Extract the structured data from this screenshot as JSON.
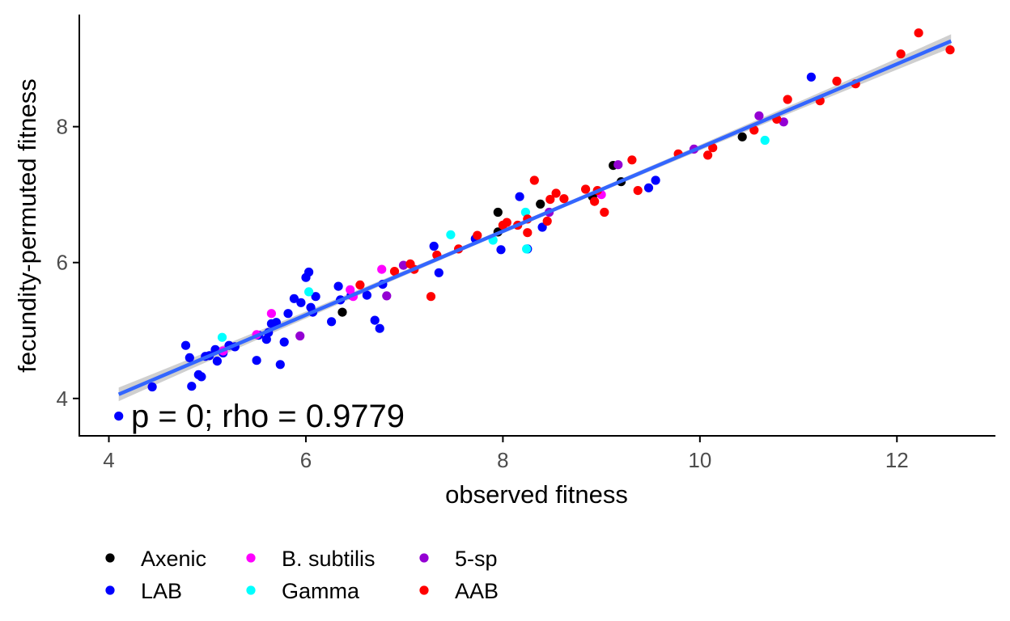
{
  "chart_data": {
    "type": "scatter",
    "xlabel": "observed fitness",
    "ylabel": "fecundity-permuted fitness",
    "xlim": [
      3.7,
      13.0
    ],
    "ylim": [
      3.45,
      9.65
    ],
    "xticks": [
      4,
      6,
      8,
      10,
      12
    ],
    "yticks": [
      4,
      6,
      8
    ],
    "annotation": "p = 0; rho = 0.9779",
    "fit_line": {
      "x": [
        4.1,
        12.55
      ],
      "y": [
        4.06,
        9.26
      ],
      "color": "#3366ff",
      "band_color": "#bfbfbf"
    },
    "legend": {
      "position": "bottom",
      "entries": [
        {
          "name": "Axenic",
          "color": "#000000"
        },
        {
          "name": "LAB",
          "color": "#0000ff"
        },
        {
          "name": "B. subtilis",
          "color": "#ff00ff"
        },
        {
          "name": "Gamma",
          "color": "#00ffff"
        },
        {
          "name": "5-sp",
          "color": "#9400d3"
        },
        {
          "name": "AAB",
          "color": "#ff0000"
        }
      ]
    },
    "series": [
      {
        "name": "Axenic",
        "color": "#000000",
        "points": [
          [
            6.37,
            5.27
          ],
          [
            7.95,
            6.74
          ],
          [
            7.95,
            6.45
          ],
          [
            8.38,
            6.86
          ],
          [
            8.91,
            6.97
          ],
          [
            9.12,
            7.43
          ],
          [
            9.2,
            7.19
          ],
          [
            10.43,
            7.85
          ]
        ]
      },
      {
        "name": "LAB",
        "color": "#0000ff",
        "points": [
          [
            4.1,
            3.74
          ],
          [
            4.44,
            4.17
          ],
          [
            4.78,
            4.78
          ],
          [
            4.82,
            4.6
          ],
          [
            4.84,
            4.18
          ],
          [
            4.91,
            4.35
          ],
          [
            4.94,
            4.32
          ],
          [
            4.98,
            4.62
          ],
          [
            5.02,
            4.63
          ],
          [
            5.08,
            4.72
          ],
          [
            5.1,
            4.55
          ],
          [
            5.16,
            4.67
          ],
          [
            5.22,
            4.78
          ],
          [
            5.28,
            4.76
          ],
          [
            5.5,
            4.56
          ],
          [
            5.52,
            4.93
          ],
          [
            5.6,
            4.87
          ],
          [
            5.62,
            4.97
          ],
          [
            5.65,
            5.1
          ],
          [
            5.7,
            5.12
          ],
          [
            5.74,
            4.5
          ],
          [
            5.78,
            4.83
          ],
          [
            5.82,
            5.25
          ],
          [
            5.88,
            5.47
          ],
          [
            5.95,
            5.41
          ],
          [
            6.0,
            5.78
          ],
          [
            6.03,
            5.86
          ],
          [
            6.05,
            5.34
          ],
          [
            6.07,
            5.27
          ],
          [
            6.1,
            5.5
          ],
          [
            6.26,
            5.13
          ],
          [
            6.33,
            5.65
          ],
          [
            6.35,
            5.45
          ],
          [
            6.46,
            5.52
          ],
          [
            6.62,
            5.52
          ],
          [
            6.7,
            5.15
          ],
          [
            6.75,
            5.03
          ],
          [
            6.78,
            5.68
          ],
          [
            7.3,
            6.24
          ],
          [
            7.35,
            5.85
          ],
          [
            7.72,
            6.35
          ],
          [
            7.98,
            6.19
          ],
          [
            8.17,
            6.97
          ],
          [
            8.25,
            6.2
          ],
          [
            8.4,
            6.52
          ],
          [
            9.48,
            7.1
          ],
          [
            9.55,
            7.21
          ],
          [
            11.13,
            8.73
          ]
        ]
      },
      {
        "name": "B. subtilis",
        "color": "#ff00ff",
        "points": [
          [
            5.16,
            4.7
          ],
          [
            5.5,
            4.94
          ],
          [
            5.65,
            5.25
          ],
          [
            6.45,
            5.6
          ],
          [
            6.48,
            5.5
          ],
          [
            6.77,
            5.9
          ],
          [
            9.0,
            7.0
          ]
        ]
      },
      {
        "name": "Gamma",
        "color": "#00ffff",
        "points": [
          [
            5.15,
            4.9
          ],
          [
            6.03,
            5.57
          ],
          [
            7.47,
            6.41
          ],
          [
            7.9,
            6.33
          ],
          [
            8.23,
            6.74
          ],
          [
            8.24,
            6.2
          ],
          [
            10.66,
            7.8
          ]
        ]
      },
      {
        "name": "5-sp",
        "color": "#9400d3",
        "points": [
          [
            5.94,
            4.92
          ],
          [
            6.82,
            5.51
          ],
          [
            6.99,
            5.96
          ],
          [
            8.47,
            6.74
          ],
          [
            9.17,
            7.44
          ],
          [
            9.94,
            7.67
          ],
          [
            10.6,
            8.16
          ],
          [
            10.85,
            8.07
          ]
        ]
      },
      {
        "name": "AAB",
        "color": "#ff0000",
        "points": [
          [
            6.55,
            5.67
          ],
          [
            6.9,
            5.87
          ],
          [
            7.06,
            5.98
          ],
          [
            7.1,
            5.9
          ],
          [
            7.27,
            5.5
          ],
          [
            7.33,
            6.11
          ],
          [
            7.55,
            6.2
          ],
          [
            7.74,
            6.4
          ],
          [
            8.0,
            6.55
          ],
          [
            8.04,
            6.59
          ],
          [
            8.15,
            6.55
          ],
          [
            8.25,
            6.44
          ],
          [
            8.25,
            6.64
          ],
          [
            8.32,
            7.21
          ],
          [
            8.45,
            6.61
          ],
          [
            8.48,
            6.93
          ],
          [
            8.54,
            7.02
          ],
          [
            8.62,
            6.94
          ],
          [
            8.84,
            7.08
          ],
          [
            8.93,
            6.9
          ],
          [
            8.96,
            7.06
          ],
          [
            9.03,
            6.74
          ],
          [
            9.31,
            7.51
          ],
          [
            9.37,
            7.06
          ],
          [
            9.78,
            7.6
          ],
          [
            10.08,
            7.58
          ],
          [
            10.13,
            7.69
          ],
          [
            10.55,
            7.95
          ],
          [
            10.78,
            8.11
          ],
          [
            10.89,
            8.4
          ],
          [
            11.22,
            8.38
          ],
          [
            11.39,
            8.67
          ],
          [
            11.58,
            8.63
          ],
          [
            12.04,
            9.07
          ],
          [
            12.22,
            9.38
          ],
          [
            12.54,
            9.13
          ]
        ]
      }
    ]
  }
}
